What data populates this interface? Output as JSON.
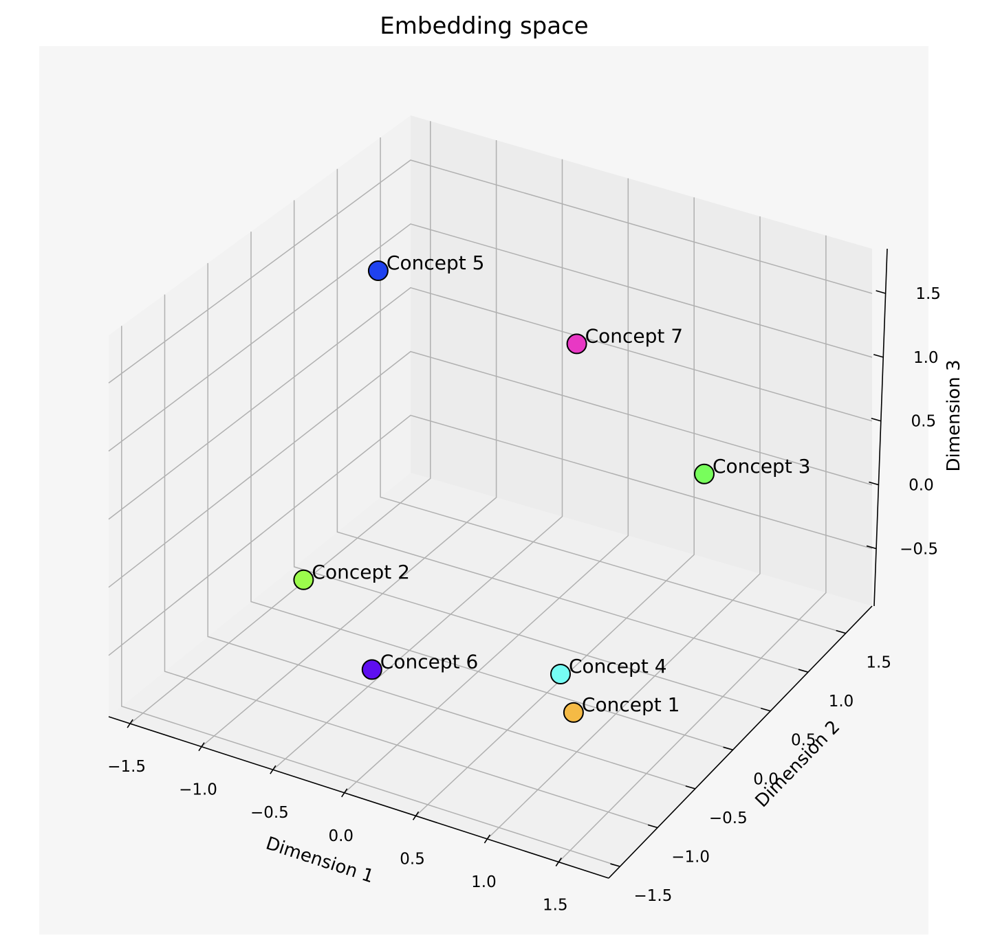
{
  "chart_data": {
    "type": "scatter",
    "title": "Embedding space",
    "xlabel": "Dimension 1",
    "ylabel": "Dimension 2",
    "zlabel": "Dimension 3",
    "xlim": [
      -1.65,
      1.85
    ],
    "ylim": [
      -1.65,
      1.85
    ],
    "zlim": [
      -0.95,
      1.85
    ],
    "xticks": [
      -1.5,
      -1.0,
      -0.5,
      0.0,
      0.5,
      1.0,
      1.5
    ],
    "yticks": [
      -1.5,
      -1.0,
      -0.5,
      0.0,
      0.5,
      1.0,
      1.5
    ],
    "zticks": [
      -0.5,
      0.0,
      0.5,
      1.0,
      1.5
    ],
    "xtick_labels": [
      "−1.5",
      "−1.0",
      "−0.5",
      "0.0",
      "0.5",
      "1.0",
      "1.5"
    ],
    "ytick_labels": [
      "−1.5",
      "−1.0",
      "−0.5",
      "0.0",
      "0.5",
      "1.0",
      "1.5"
    ],
    "ztick_labels": [
      "−0.5",
      "0.0",
      "0.5",
      "1.0",
      "1.5"
    ],
    "grid": true,
    "pane_color": "#f1f1f1",
    "background": "#f6f6f6",
    "points": [
      {
        "label": "Concept 1",
        "x": 0.79,
        "y": -0.17,
        "z": -0.91,
        "color": "#f5ba45"
      },
      {
        "label": "Concept 2",
        "x": -0.67,
        "y": -0.99,
        "z": 0.05,
        "color": "#9cfb4c"
      },
      {
        "label": "Concept 3",
        "x": 0.78,
        "y": 1.51,
        "z": -0.04,
        "color": "#78fd5c"
      },
      {
        "label": "Concept 4",
        "x": 0.65,
        "y": -0.09,
        "z": -0.71,
        "color": "#76fcf4"
      },
      {
        "label": "Concept 5",
        "x": -1.02,
        "y": 0.48,
        "z": 1.52,
        "color": "#1f42ef"
      },
      {
        "label": "Concept 6",
        "x": -0.26,
        "y": -0.86,
        "z": -0.55,
        "color": "#5e0ff0"
      },
      {
        "label": "Concept 7",
        "x": 0.13,
        "y": 1.0,
        "z": 1.05,
        "color": "#e838c4"
      }
    ]
  }
}
